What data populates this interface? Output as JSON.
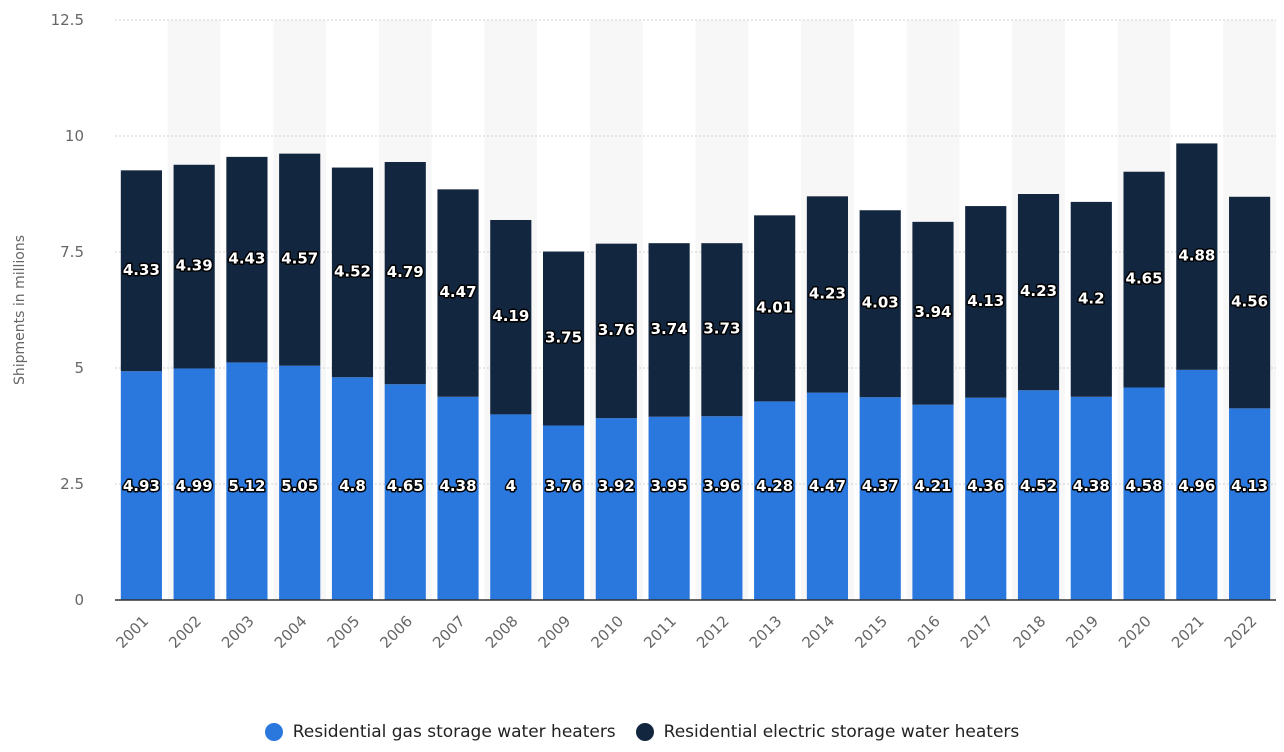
{
  "chart_data": {
    "type": "bar",
    "stacked": true,
    "categories": [
      "2001",
      "2002",
      "2003",
      "2004",
      "2005",
      "2006",
      "2007",
      "2008",
      "2009",
      "2010",
      "2011",
      "2012",
      "2013",
      "2014",
      "2015",
      "2016",
      "2017",
      "2018",
      "2019",
      "2020",
      "2021",
      "2022"
    ],
    "series": [
      {
        "name": "Residential gas storage water heaters",
        "color": "#2a78de",
        "values": [
          4.93,
          4.99,
          5.12,
          5.05,
          4.8,
          4.65,
          4.38,
          4,
          3.76,
          3.92,
          3.95,
          3.96,
          4.28,
          4.47,
          4.37,
          4.21,
          4.36,
          4.52,
          4.38,
          4.58,
          4.96,
          4.13
        ]
      },
      {
        "name": "Residential electric storage water heaters",
        "color": "#13263f",
        "values": [
          4.33,
          4.39,
          4.43,
          4.57,
          4.52,
          4.79,
          4.47,
          4.19,
          3.75,
          3.76,
          3.74,
          3.73,
          4.01,
          4.23,
          4.03,
          3.94,
          4.13,
          4.23,
          4.2,
          4.65,
          4.88,
          4.56
        ]
      }
    ],
    "ylabel": "Shipments in millions",
    "xlabel": "",
    "ylim": [
      0,
      12.5
    ],
    "yticks": [
      "0",
      "2.5",
      "5",
      "7.5",
      "10",
      "12.5"
    ],
    "grid": true,
    "legend_position": "bottom"
  }
}
